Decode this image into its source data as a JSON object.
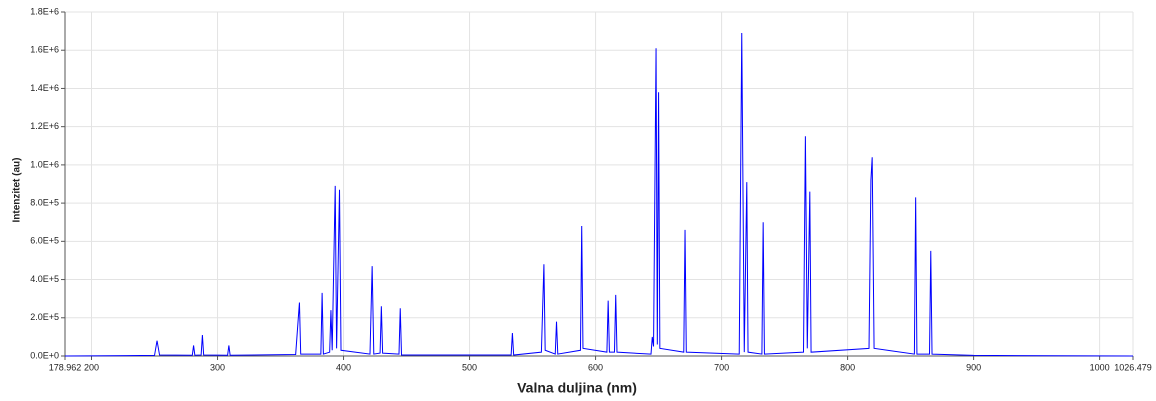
{
  "chart_data": {
    "type": "line",
    "xlabel": "Valna duljina (nm)",
    "ylabel": "Intenzitet (au)",
    "color": "#0000ff",
    "grid": true,
    "xlim": [
      178.962,
      1026.479
    ],
    "xticks": [
      178.962,
      200,
      300,
      400,
      500,
      600,
      700,
      800,
      900,
      1000,
      1026.479
    ],
    "ylim": [
      0,
      1800000
    ],
    "yticks": [
      {
        "value": 0,
        "label": "0.0E+0"
      },
      {
        "value": 200000,
        "label": "2.0E+5"
      },
      {
        "value": 400000,
        "label": "4.0E+5"
      },
      {
        "value": 600000,
        "label": "6.0E+5"
      },
      {
        "value": 800000,
        "label": "8.0E+5"
      },
      {
        "value": 1000000,
        "label": "1.0E+6"
      },
      {
        "value": 1200000,
        "label": "1.2E+6"
      },
      {
        "value": 1400000,
        "label": "1.4E+6"
      },
      {
        "value": 1600000,
        "label": "1.6E+6"
      },
      {
        "value": 1800000,
        "label": "1.8E+6"
      }
    ],
    "x": [
      178.962,
      250,
      252,
      254,
      280,
      281,
      282,
      287,
      288,
      289,
      308,
      309,
      310,
      362,
      364,
      365,
      366,
      382,
      383,
      384,
      389,
      390,
      391,
      393.4,
      394.5,
      396.8,
      398,
      421,
      422.7,
      424,
      429,
      430,
      431,
      444,
      445,
      446,
      533,
      534,
      535,
      557,
      559,
      560,
      568,
      569,
      570,
      588,
      589,
      590,
      609,
      610,
      611,
      615,
      616,
      617,
      644,
      645,
      646,
      648,
      649,
      650,
      651,
      670,
      671,
      672,
      714,
      716,
      718,
      720,
      721,
      732,
      733,
      734,
      765,
      766.5,
      768,
      770,
      771,
      817,
      818.5,
      819.5,
      821,
      853,
      854,
      855,
      865,
      866,
      867,
      900,
      1026.479
    ],
    "values": [
      0,
      3000,
      80000,
      5000,
      4000,
      55000,
      4000,
      5000,
      110000,
      5000,
      4000,
      55000,
      4000,
      8000,
      190000,
      280000,
      10000,
      10000,
      330000,
      10000,
      20000,
      240000,
      30000,
      890000,
      40000,
      870000,
      30000,
      10000,
      470000,
      10000,
      15000,
      260000,
      15000,
      10000,
      250000,
      5000,
      5000,
      120000,
      5000,
      20000,
      480000,
      30000,
      10000,
      180000,
      10000,
      30000,
      680000,
      40000,
      20000,
      290000,
      20000,
      20000,
      320000,
      20000,
      10000,
      100000,
      50000,
      1610000,
      60000,
      1380000,
      40000,
      20000,
      660000,
      20000,
      10000,
      1690000,
      20000,
      910000,
      20000,
      10000,
      700000,
      10000,
      20000,
      1150000,
      40000,
      860000,
      20000,
      40000,
      920000,
      1040000,
      40000,
      10000,
      830000,
      10000,
      10000,
      550000,
      10000,
      3000,
      0
    ]
  }
}
